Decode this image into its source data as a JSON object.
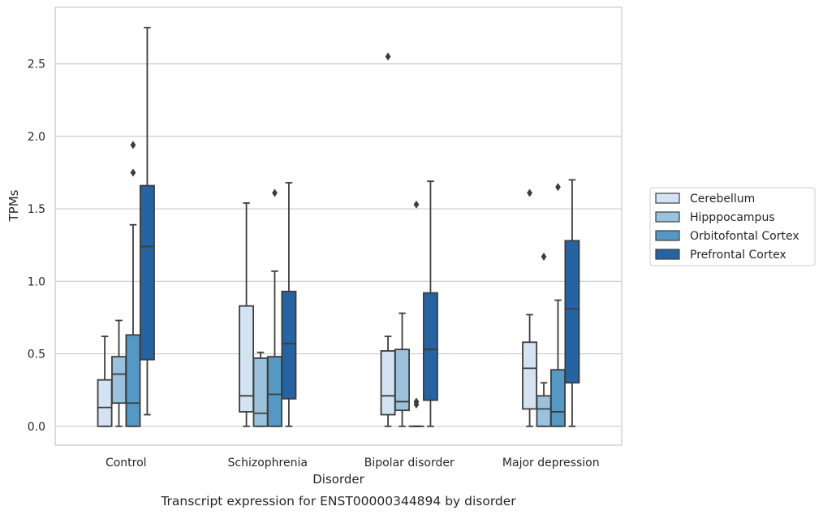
{
  "caption": "Transcript expression for ENST00000344894 by disorder",
  "colors": {
    "grid": "#cccccc",
    "frame": "#cccccc",
    "line": "#3d3d3d",
    "background": "#ffffff"
  },
  "chart_data": {
    "type": "box",
    "title": "",
    "xlabel": "Disorder",
    "ylabel": "TPMs",
    "ylim": [
      -0.13,
      2.89
    ],
    "yticks": [
      "0.0",
      "0.5",
      "1.0",
      "1.5",
      "2.0",
      "2.5"
    ],
    "ytick_values": [
      0.0,
      0.5,
      1.0,
      1.5,
      2.0,
      2.5
    ],
    "grid": true,
    "legend_position": "right",
    "categories": [
      "Control",
      "Schizophrenia",
      "Bipolar disorder",
      "Major depression"
    ],
    "series": [
      {
        "name": "Cerebellum",
        "color": "#d4e3f2",
        "boxes": [
          {
            "q1": 0.0,
            "median": 0.13,
            "q3": 0.32,
            "whislo": 0.0,
            "whishi": 0.62,
            "fliers": []
          },
          {
            "q1": 0.1,
            "median": 0.21,
            "q3": 0.83,
            "whislo": 0.0,
            "whishi": 1.54,
            "fliers": []
          },
          {
            "q1": 0.08,
            "median": 0.21,
            "q3": 0.52,
            "whislo": 0.0,
            "whishi": 0.62,
            "fliers": [
              2.55
            ]
          },
          {
            "q1": 0.12,
            "median": 0.4,
            "q3": 0.58,
            "whislo": 0.0,
            "whishi": 0.77,
            "fliers": [
              1.61
            ]
          }
        ]
      },
      {
        "name": "Hipppocampus",
        "color": "#9ac2dc",
        "boxes": [
          {
            "q1": 0.16,
            "median": 0.36,
            "q3": 0.48,
            "whislo": 0.0,
            "whishi": 0.73,
            "fliers": []
          },
          {
            "q1": 0.0,
            "median": 0.09,
            "q3": 0.47,
            "whislo": 0.0,
            "whishi": 0.51,
            "fliers": []
          },
          {
            "q1": 0.11,
            "median": 0.17,
            "q3": 0.53,
            "whislo": 0.0,
            "whishi": 0.78,
            "fliers": []
          },
          {
            "q1": 0.0,
            "median": 0.12,
            "q3": 0.21,
            "whislo": 0.0,
            "whishi": 0.3,
            "fliers": [
              1.17
            ]
          }
        ]
      },
      {
        "name": "Orbitofontal Cortex",
        "color": "#5598c4",
        "boxes": [
          {
            "q1": 0.0,
            "median": 0.16,
            "q3": 0.63,
            "whislo": 0.0,
            "whishi": 1.39,
            "fliers": [
              1.75,
              1.94
            ]
          },
          {
            "q1": 0.0,
            "median": 0.22,
            "q3": 0.48,
            "whislo": 0.0,
            "whishi": 1.07,
            "fliers": [
              1.61
            ]
          },
          {
            "q1": 0.0,
            "median": 0.0,
            "q3": 0.0,
            "whislo": 0.0,
            "whishi": 0.0,
            "fliers": [
              0.15,
              0.17,
              1.53
            ]
          },
          {
            "q1": 0.0,
            "median": 0.1,
            "q3": 0.39,
            "whislo": 0.0,
            "whishi": 0.87,
            "fliers": [
              1.65
            ]
          }
        ]
      },
      {
        "name": "Prefrontal Cortex",
        "color": "#2563a3",
        "boxes": [
          {
            "q1": 0.46,
            "median": 1.24,
            "q3": 1.66,
            "whislo": 0.08,
            "whishi": 2.75,
            "fliers": []
          },
          {
            "q1": 0.19,
            "median": 0.57,
            "q3": 0.93,
            "whislo": 0.0,
            "whishi": 1.68,
            "fliers": []
          },
          {
            "q1": 0.18,
            "median": 0.53,
            "q3": 0.92,
            "whislo": 0.0,
            "whishi": 1.69,
            "fliers": []
          },
          {
            "q1": 0.3,
            "median": 0.81,
            "q3": 1.28,
            "whislo": 0.0,
            "whishi": 1.7,
            "fliers": []
          }
        ]
      }
    ]
  }
}
